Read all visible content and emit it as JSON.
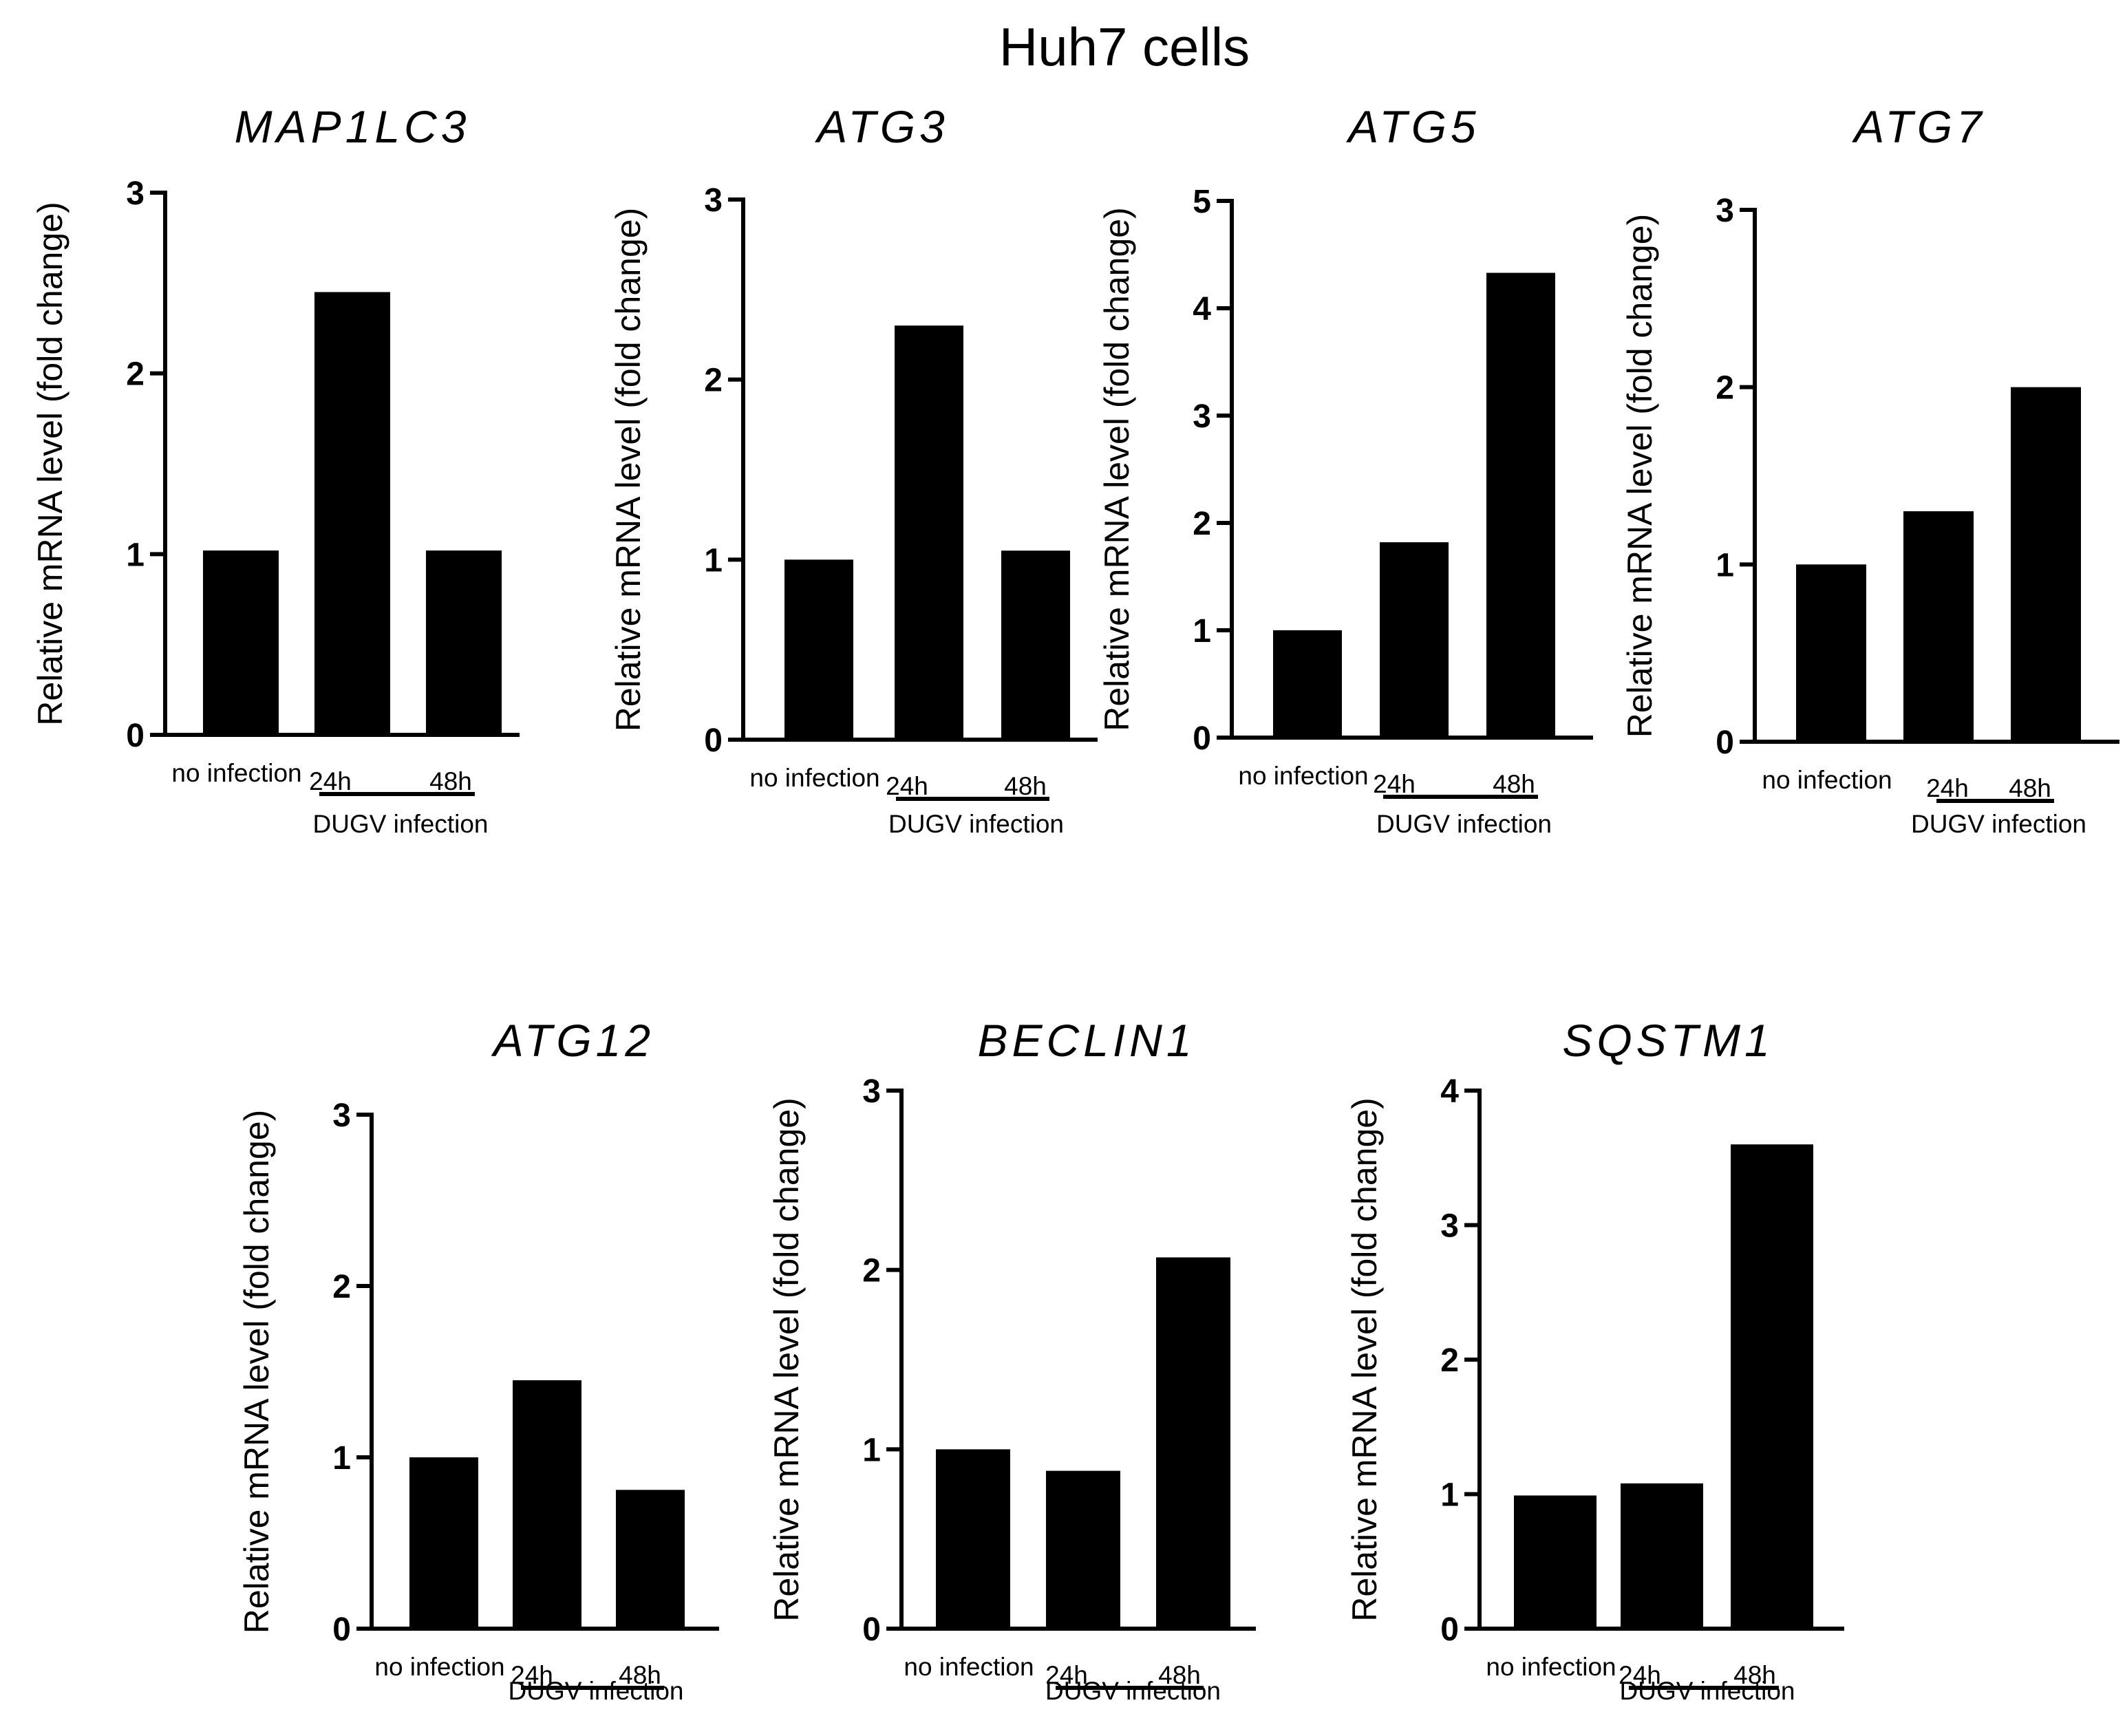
{
  "figure": {
    "title": "Huh7 cells"
  },
  "chart_data": [
    {
      "type": "bar",
      "title": "MAP1LC3",
      "ylabel": "Relative mRNA level (fold change)",
      "categories": [
        "no infection",
        "24h",
        "48h"
      ],
      "group_label": "DUGV infection",
      "values": [
        1.02,
        2.45,
        1.02
      ],
      "ylim": [
        0,
        3
      ],
      "yticks": [
        0,
        1,
        2,
        3
      ]
    },
    {
      "type": "bar",
      "title": "ATG3",
      "ylabel": "Relative mRNA level (fold change)",
      "categories": [
        "no infection",
        "24h",
        "48h"
      ],
      "group_label": "DUGV infection",
      "values": [
        1.0,
        2.3,
        1.05
      ],
      "ylim": [
        0,
        3
      ],
      "yticks": [
        0,
        1,
        2,
        3
      ]
    },
    {
      "type": "bar",
      "title": "ATG5",
      "ylabel": "Relative mRNA level (fold change)",
      "categories": [
        "no infection",
        "24h",
        "48h"
      ],
      "group_label": "DUGV infection",
      "values": [
        1.0,
        1.82,
        4.33
      ],
      "ylim": [
        0,
        5
      ],
      "yticks": [
        0,
        1,
        2,
        3,
        4,
        5
      ]
    },
    {
      "type": "bar",
      "title": "ATG7",
      "ylabel": "Relative mRNA level (fold change)",
      "categories": [
        "no infection",
        "24h",
        "48h"
      ],
      "group_label": "DUGV infection",
      "values": [
        1.0,
        1.3,
        2.0
      ],
      "ylim": [
        0,
        3
      ],
      "yticks": [
        0,
        1,
        2,
        3
      ]
    },
    {
      "type": "bar",
      "title": "ATG12",
      "ylabel": "Relative mRNA level (fold change)",
      "categories": [
        "no infection",
        "24h",
        "48h"
      ],
      "group_label": "DUGV infection",
      "values": [
        1.0,
        1.45,
        0.81
      ],
      "ylim": [
        0,
        3
      ],
      "yticks": [
        0,
        1,
        2,
        3
      ]
    },
    {
      "type": "bar",
      "title": "BECLIN1",
      "ylabel": "Relative mRNA level (fold change)",
      "categories": [
        "no infection",
        "24h",
        "48h"
      ],
      "group_label": "DUGV infection",
      "values": [
        1.0,
        0.88,
        2.07
      ],
      "ylim": [
        0,
        3
      ],
      "yticks": [
        0,
        1,
        2,
        3
      ]
    },
    {
      "type": "bar",
      "title": "SQSTM1",
      "ylabel": "Relative mRNA level (fold change)",
      "categories": [
        "no infection",
        "24h",
        "48h"
      ],
      "group_label": "DUGV infection",
      "values": [
        0.99,
        1.08,
        3.6
      ],
      "ylim": [
        0,
        4
      ],
      "yticks": [
        0,
        1,
        2,
        3,
        4
      ]
    }
  ]
}
